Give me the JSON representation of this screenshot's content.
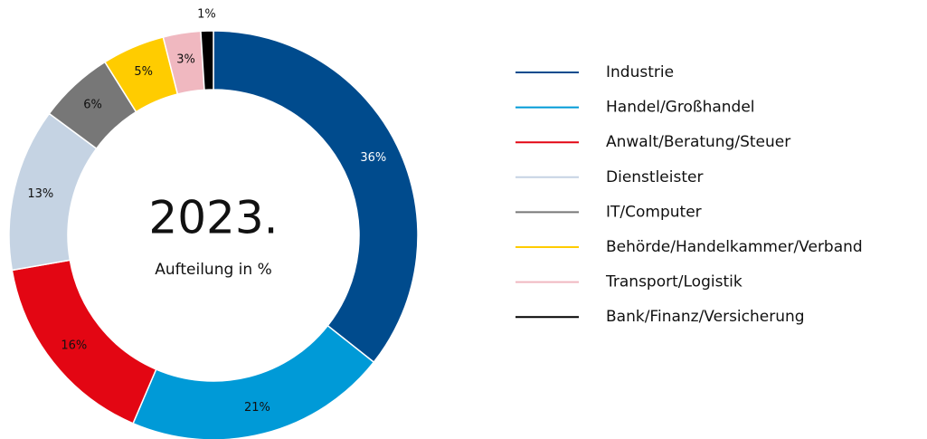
{
  "chart_data": {
    "type": "donut",
    "title": "2023.",
    "subtitle": "Aufteilung in %",
    "categories": [
      "Industrie",
      "Handel/Großhandel",
      "Anwalt/Beratung/Steuer",
      "Dienstleister",
      "IT/Computer",
      "Behörde/Handelkammer/Verband",
      "Transport/Logistik",
      "Bank/Finanz/Versicherung"
    ],
    "values": [
      36,
      21,
      16,
      13,
      6,
      5,
      3,
      1
    ],
    "value_labels": [
      "36%",
      "21%",
      "16%",
      "13%",
      "6%",
      "5%",
      "3%",
      "1%"
    ],
    "colors": [
      "#004b8d",
      "#009ad7",
      "#e30613",
      "#c5d3e3",
      "#777777",
      "#ffcc00",
      "#f0b8c0",
      "#000000"
    ],
    "legend": "right"
  }
}
